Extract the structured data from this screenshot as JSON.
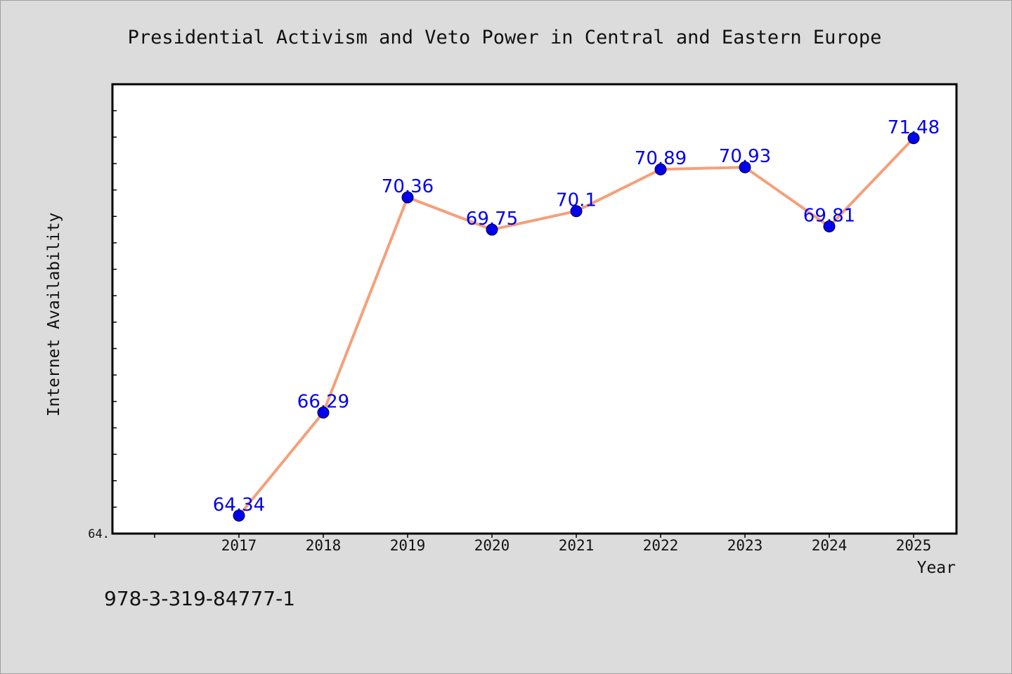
{
  "chart_data": {
    "type": "line",
    "title": "Presidential Activism and Veto Power in Central and Eastern Europe",
    "xlabel": "Year",
    "ylabel": "Internet Availability",
    "categories": [
      "2017",
      "2018",
      "2019",
      "2020",
      "2021",
      "2022",
      "2023",
      "2024",
      "2025"
    ],
    "values": [
      64.34,
      66.29,
      70.36,
      69.75,
      70.1,
      70.89,
      70.93,
      69.81,
      71.48
    ],
    "data_labels": [
      "64.34",
      "66.29",
      "70.36",
      "69.75",
      "70.1",
      "70.89",
      "70.93",
      "69.81",
      "71.48"
    ],
    "ytick_label": "64.",
    "ylim": [
      64.0,
      72.5
    ],
    "grid": false,
    "line_color": "#f4a07a",
    "marker_color": "#0000ee",
    "label_color": "#0000ee"
  },
  "footer": {
    "isbn": "978-3-319-84777-1"
  }
}
